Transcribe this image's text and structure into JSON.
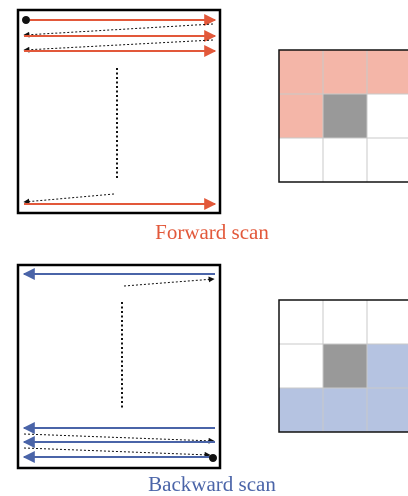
{
  "panels": [
    {
      "id": "forward",
      "caption": "Forward scan",
      "color": "#e2583a",
      "fill": "#f4b6a8",
      "scan_order": "top-left to bottom-right",
      "grid": {
        "rows": 3,
        "visible_columns": 3,
        "cells": [
          [
            "highlighted",
            "highlighted",
            "highlighted"
          ],
          [
            "highlighted",
            "current",
            "empty"
          ],
          [
            "empty",
            "empty",
            "empty"
          ]
        ]
      }
    },
    {
      "id": "backward",
      "caption": "Backward scan",
      "color": "#4a64a8",
      "fill": "#b5c3e1",
      "scan_order": "bottom-right to top-left",
      "grid": {
        "rows": 3,
        "visible_columns": 3,
        "cells": [
          [
            "empty",
            "empty",
            "empty"
          ],
          [
            "empty",
            "current",
            "highlighted"
          ],
          [
            "highlighted",
            "highlighted",
            "highlighted"
          ]
        ]
      }
    }
  ],
  "current_cell_color": "#999999"
}
